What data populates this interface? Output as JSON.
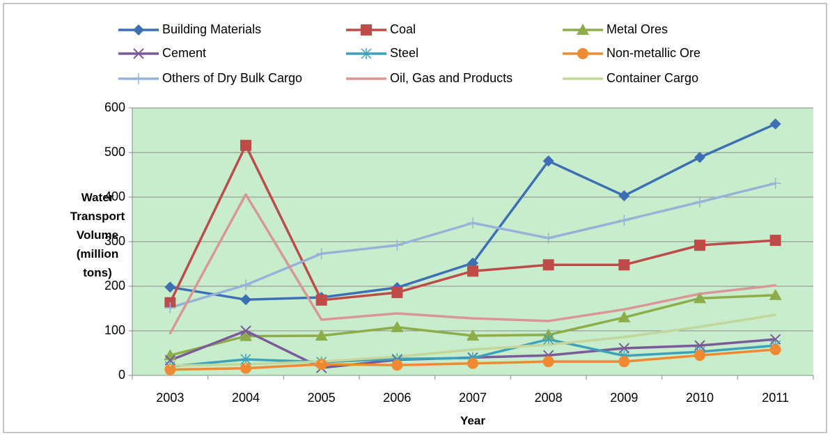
{
  "chart_data": {
    "type": "line",
    "x_label": "Year",
    "y_label": "Water Transport Volume (million tons)",
    "categories": [
      "2003",
      "2004",
      "2005",
      "2006",
      "2007",
      "2008",
      "2009",
      "2010",
      "2011"
    ],
    "ylim": [
      0,
      600
    ],
    "yticks": [
      0,
      100,
      200,
      300,
      400,
      500,
      600
    ],
    "grid": true,
    "series": [
      {
        "name": "Building Materials",
        "color": "#3d6fb5",
        "marker": "diamond",
        "values": [
          198,
          170,
          175,
          197,
          252,
          481,
          403,
          489,
          564
        ]
      },
      {
        "name": "Coal",
        "color": "#be4b48",
        "marker": "square",
        "values": [
          163,
          516,
          169,
          186,
          234,
          248,
          248,
          292,
          303
        ]
      },
      {
        "name": "Metal Ores",
        "color": "#8cad4a",
        "marker": "triangle",
        "values": [
          45,
          88,
          89,
          108,
          89,
          91,
          130,
          173,
          180
        ]
      },
      {
        "name": "Cement",
        "color": "#7b5a9a",
        "marker": "x",
        "values": [
          34,
          100,
          17,
          35,
          40,
          45,
          61,
          67,
          81
        ]
      },
      {
        "name": "Steel",
        "color": "#3ba2ba",
        "marker": "asterisk",
        "values": [
          20,
          36,
          30,
          37,
          39,
          81,
          44,
          53,
          67
        ]
      },
      {
        "name": "Non-metallic Ore",
        "color": "#f08a32",
        "marker": "circle",
        "values": [
          13,
          16,
          25,
          23,
          27,
          31,
          31,
          45,
          58
        ]
      },
      {
        "name": "Others of Dry Bulk Cargo",
        "color": "#95b3d7",
        "marker": "plus",
        "values": [
          152,
          203,
          273,
          292,
          342,
          308,
          348,
          389,
          431
        ]
      },
      {
        "name": "Oil, Gas and Products",
        "color": "#d99694",
        "marker": "none",
        "values": [
          94,
          406,
          125,
          139,
          128,
          122,
          148,
          183,
          202
        ]
      },
      {
        "name": "Container Cargo",
        "color": "#c3d69b",
        "marker": "none",
        "values": [
          22,
          25,
          31,
          42,
          58,
          69,
          86,
          109,
          136
        ]
      }
    ]
  }
}
